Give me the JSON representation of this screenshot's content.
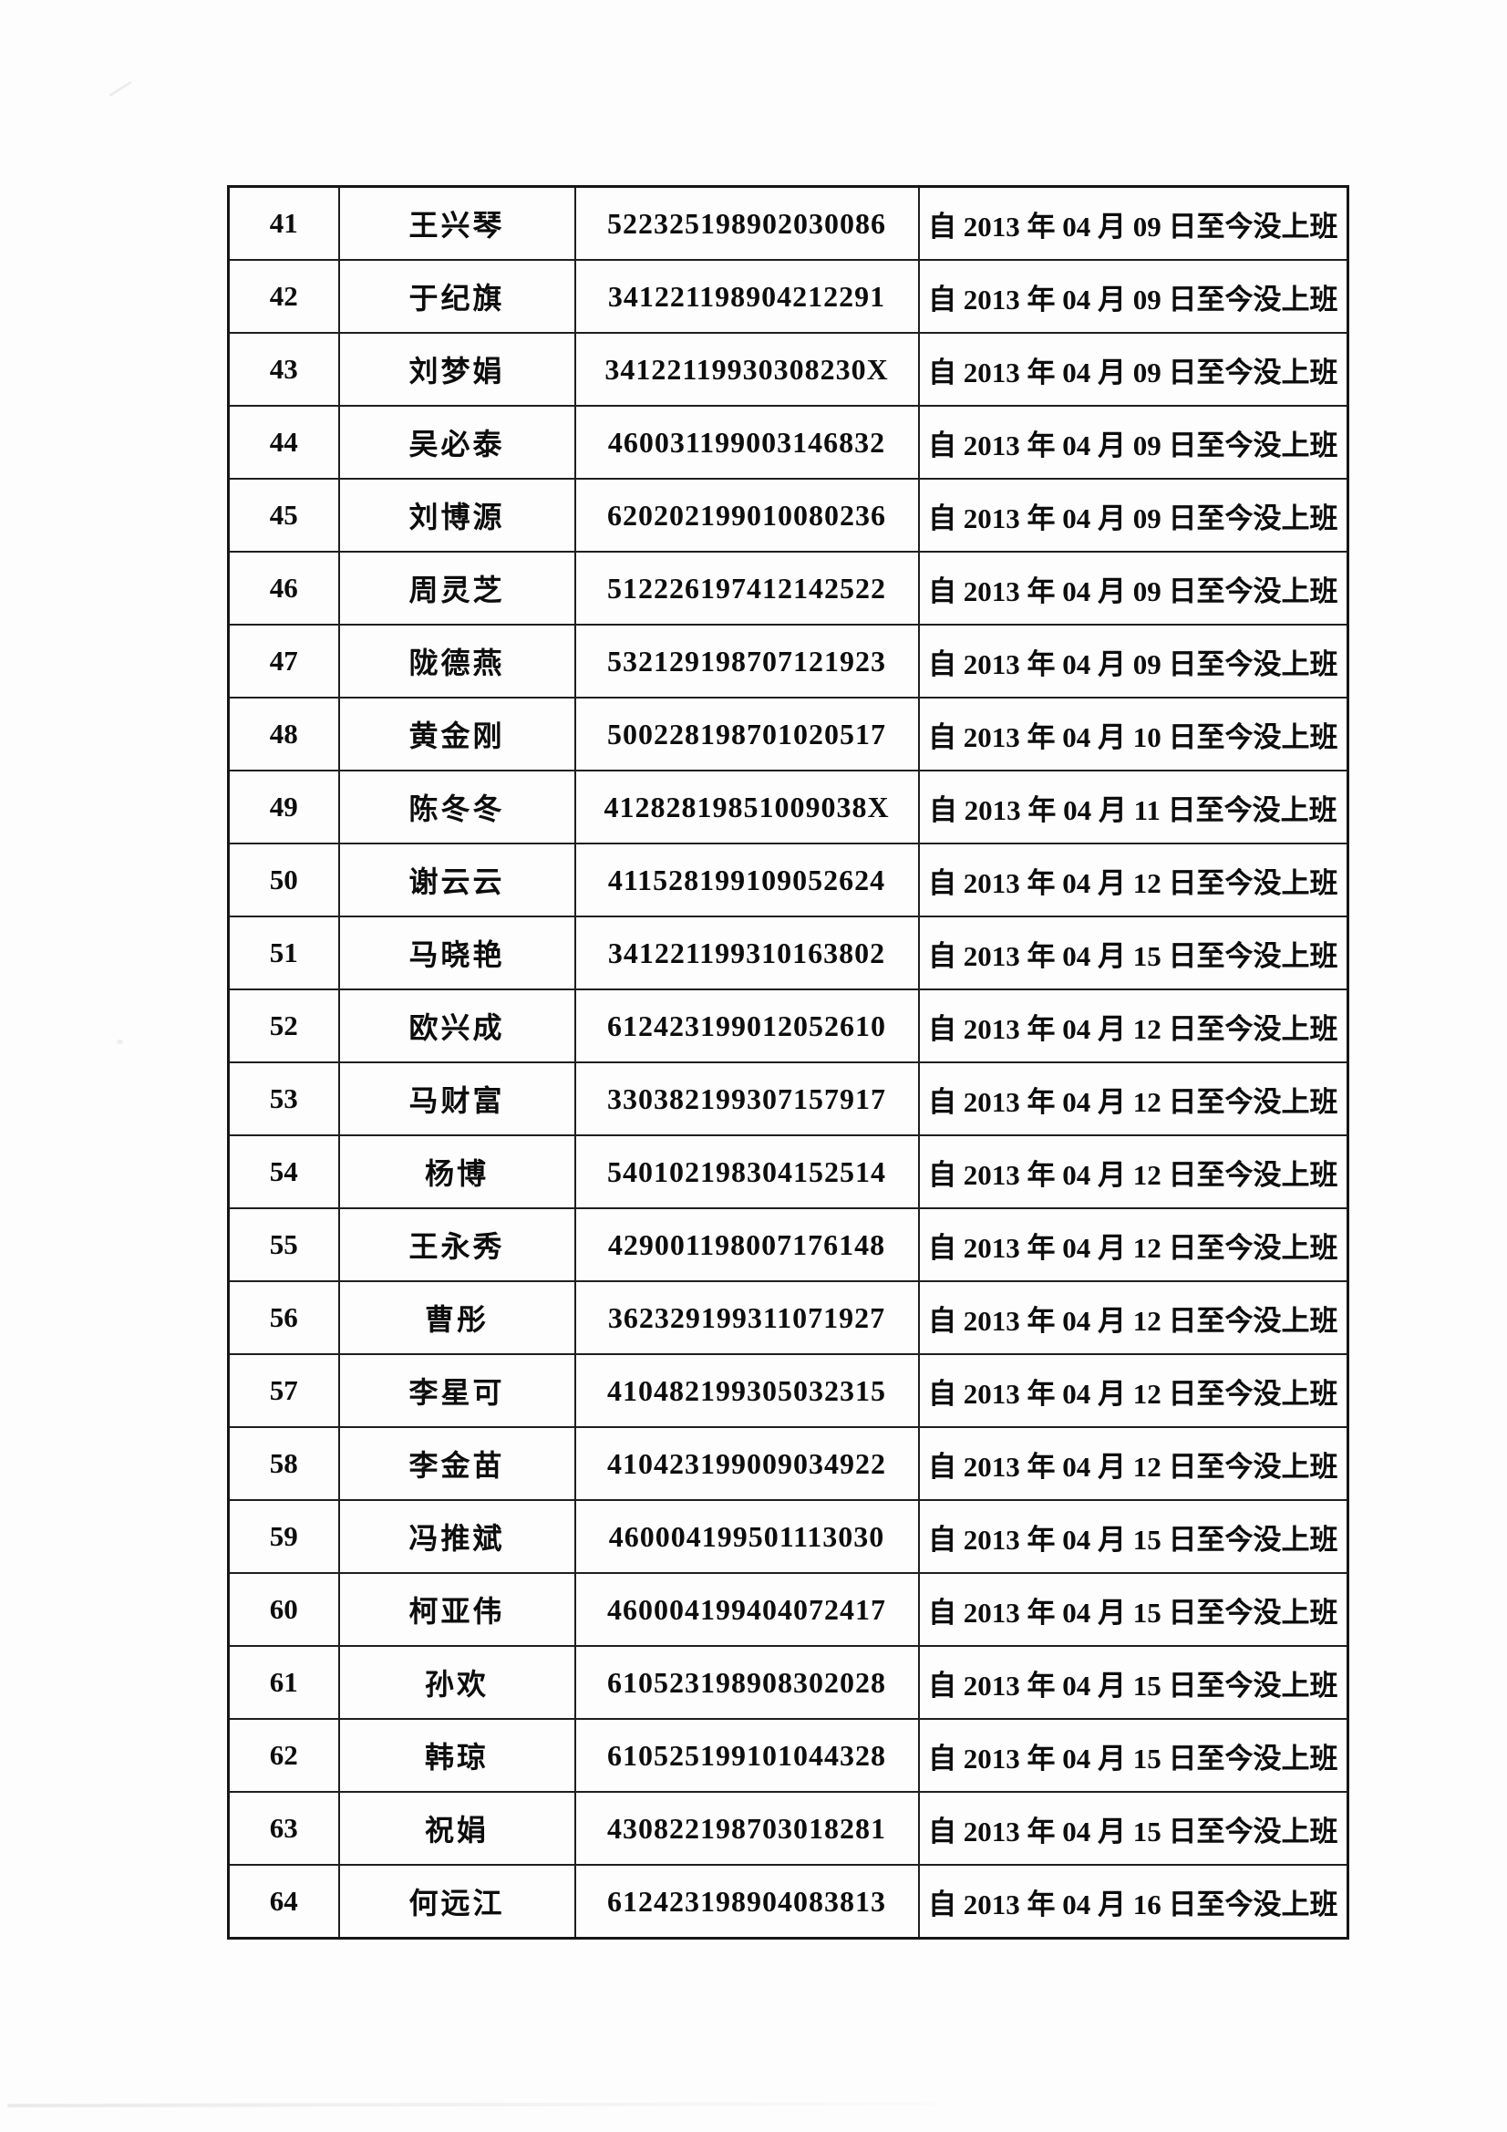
{
  "page": {
    "type": "scanned-attendance-roster",
    "paper_color": "#fdfdfd",
    "ink_color": "#0d0d0d",
    "border_color": "#1f1f1f"
  },
  "table": {
    "rows": [
      {
        "no": "41",
        "name": "王兴琴",
        "id": "522325198902030086",
        "status": "自 2013 年 04 月 09 日至今没上班"
      },
      {
        "no": "42",
        "name": "于纪旗",
        "id": "341221198904212291",
        "status": "自 2013 年 04 月 09 日至今没上班"
      },
      {
        "no": "43",
        "name": "刘梦娟",
        "id": "34122119930308230X",
        "status": "自 2013 年 04 月 09 日至今没上班"
      },
      {
        "no": "44",
        "name": "吴必泰",
        "id": "460031199003146832",
        "status": "自 2013 年 04 月 09 日至今没上班"
      },
      {
        "no": "45",
        "name": "刘博源",
        "id": "620202199010080236",
        "status": "自 2013 年 04 月 09 日至今没上班"
      },
      {
        "no": "46",
        "name": "周灵芝",
        "id": "512226197412142522",
        "status": "自 2013 年 04 月 09 日至今没上班"
      },
      {
        "no": "47",
        "name": "陇德燕",
        "id": "532129198707121923",
        "status": "自 2013 年 04 月 09 日至今没上班"
      },
      {
        "no": "48",
        "name": "黄金刚",
        "id": "500228198701020517",
        "status": "自 2013 年 04 月 10 日至今没上班"
      },
      {
        "no": "49",
        "name": "陈冬冬",
        "id": "41282819851009038X",
        "status": "自 2013 年 04 月 11 日至今没上班"
      },
      {
        "no": "50",
        "name": "谢云云",
        "id": "411528199109052624",
        "status": "自 2013 年 04 月 12 日至今没上班"
      },
      {
        "no": "51",
        "name": "马晓艳",
        "id": "341221199310163802",
        "status": "自 2013 年 04 月 15 日至今没上班"
      },
      {
        "no": "52",
        "name": "欧兴成",
        "id": "612423199012052610",
        "status": "自 2013 年 04 月 12 日至今没上班"
      },
      {
        "no": "53",
        "name": "马财富",
        "id": "330382199307157917",
        "status": "自 2013 年 04 月 12 日至今没上班"
      },
      {
        "no": "54",
        "name": "杨博",
        "id": "540102198304152514",
        "status": "自 2013 年 04 月 12 日至今没上班"
      },
      {
        "no": "55",
        "name": "王永秀",
        "id": "429001198007176148",
        "status": "自 2013 年 04 月 12 日至今没上班"
      },
      {
        "no": "56",
        "name": "曹彤",
        "id": "362329199311071927",
        "status": "自 2013 年 04 月 12 日至今没上班"
      },
      {
        "no": "57",
        "name": "李星可",
        "id": "410482199305032315",
        "status": "自 2013 年 04 月 12 日至今没上班"
      },
      {
        "no": "58",
        "name": "李金苗",
        "id": "410423199009034922",
        "status": "自 2013 年 04 月 12 日至今没上班"
      },
      {
        "no": "59",
        "name": "冯推斌",
        "id": "460004199501113030",
        "status": "自 2013 年 04 月 15 日至今没上班"
      },
      {
        "no": "60",
        "name": "柯亚伟",
        "id": "460004199404072417",
        "status": "自 2013 年 04 月 15 日至今没上班"
      },
      {
        "no": "61",
        "name": "孙欢",
        "id": "610523198908302028",
        "status": "自 2013 年 04 月 15 日至今没上班"
      },
      {
        "no": "62",
        "name": "韩琼",
        "id": "610525199101044328",
        "status": "自 2013 年 04 月 15 日至今没上班"
      },
      {
        "no": "63",
        "name": "祝娟",
        "id": "430822198703018281",
        "status": "自 2013 年 04 月 15 日至今没上班"
      },
      {
        "no": "64",
        "name": "何远江",
        "id": "612423198904083813",
        "status": "自 2013 年 04 月 16 日至今没上班"
      }
    ]
  }
}
